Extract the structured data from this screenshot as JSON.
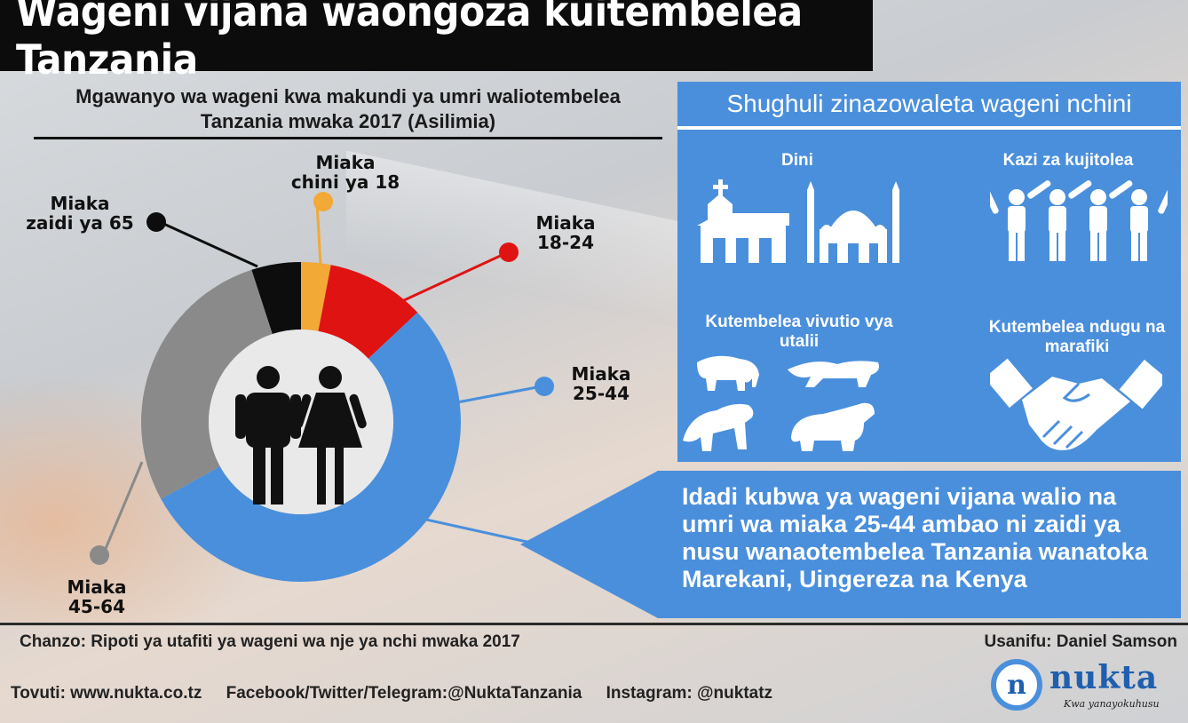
{
  "title": "Wageni vijana waongoza kuitembelea Tanzania",
  "chart_heading_line1": "Mgawanyo wa wageni kwa makundi ya umri waliotembelea",
  "chart_heading_line2": "Tanzania mwaka 2017 (Asilimia)",
  "chart_data": {
    "type": "pie",
    "title": "Mgawanyo wa wageni kwa makundi ya umri waliotembelea Tanzania mwaka 2017 (Asilimia)",
    "categories": [
      "Miaka chini ya 18",
      "Miaka 18-24",
      "Miaka 25-44",
      "Miaka 45-64",
      "Miaka zaidi ya 65"
    ],
    "values": [
      3,
      10,
      54,
      28,
      5
    ],
    "colors": [
      "#f2a935",
      "#e01313",
      "#4a8fdc",
      "#8a8a8a",
      "#0d0d0d"
    ],
    "labels": {
      "under18": [
        "Miaka",
        "chini ya 18"
      ],
      "age18_24": [
        "Miaka",
        "18-24"
      ],
      "age25_44": [
        "Miaka",
        "25-44"
      ],
      "age45_64": [
        "Miaka",
        "45-64"
      ],
      "over65": [
        "Miaka",
        "zaidi ya 65"
      ]
    }
  },
  "panel": {
    "title": "Shughuli zinazowaleta wageni nchini",
    "activities": {
      "dini": "Dini",
      "kazi": "Kazi za kujitolea",
      "vivutio": "Kutembelea vivutio vya utalii",
      "ndugu": "Kutembelea ndugu na marafiki"
    }
  },
  "callout_text": "Idadi kubwa ya wageni vijana walio na umri wa miaka 25-44 ambao ni zaidi ya nusu wanaotembelea Tanzania wanatoka Marekani, Uingereza na Kenya",
  "footer": {
    "source": "Chanzo: Ripoti ya utafiti ya wageni wa nje ya nchi mwaka 2017",
    "designer": "Usanifu: Daniel Samson",
    "website": "Tovuti: www.nukta.co.tz",
    "social": "Facebook/Twitter/Telegram:@NuktaTanzania",
    "instagram": "Instagram: @nuktatz"
  },
  "logo": {
    "mark": "n",
    "word": "nukta",
    "tagline": "Kwa yanayokuhusu"
  }
}
